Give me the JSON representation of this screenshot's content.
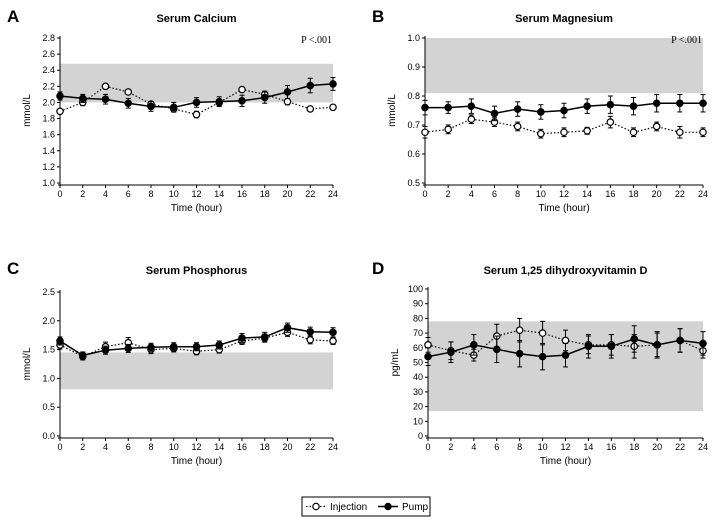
{
  "legend": {
    "injection": "Injection",
    "pump": "Pump"
  },
  "colors": {
    "band": "#d3d3d3",
    "pump": "#000000",
    "injection_fill": "#ffffff",
    "line": "#000000"
  },
  "chart_data": [
    {
      "panel": "A",
      "type": "line",
      "title": "Serum Calcium",
      "xlabel": "Time (hour)",
      "ylabel": "mmol/L",
      "annotation": "P <.001",
      "xlim": [
        0,
        24
      ],
      "ylim": [
        1.0,
        2.8
      ],
      "xticks": [
        0,
        2,
        4,
        6,
        8,
        10,
        12,
        14,
        16,
        18,
        20,
        22,
        24
      ],
      "yticks": [
        "1.0",
        "1.2",
        "1.4",
        "1.6",
        "1.8",
        "2.0",
        "2.2",
        "2.4",
        "2.6",
        "2.8"
      ],
      "reference_band": [
        2.0,
        2.48
      ],
      "x": [
        0,
        2,
        4,
        6,
        8,
        10,
        12,
        14,
        16,
        18,
        20,
        22,
        24
      ],
      "series": [
        {
          "name": "Injection",
          "style": "dotted-open",
          "values": [
            1.89,
            2.0,
            2.2,
            2.13,
            1.98,
            1.92,
            1.85,
            2.0,
            2.16,
            2.1,
            2.01,
            1.92,
            1.94
          ],
          "err": [
            0.03,
            0.04,
            0.03,
            0.03,
            0.03,
            0.03,
            0.04,
            0.04,
            0.03,
            0.04,
            0.04,
            0.03,
            0.03
          ]
        },
        {
          "name": "Pump",
          "style": "solid-filled",
          "values": [
            2.08,
            2.05,
            2.04,
            1.99,
            1.95,
            1.94,
            2.0,
            2.01,
            2.02,
            2.06,
            2.13,
            2.21,
            2.23
          ],
          "err": [
            0.05,
            0.05,
            0.06,
            0.06,
            0.06,
            0.06,
            0.06,
            0.06,
            0.07,
            0.07,
            0.08,
            0.09,
            0.08
          ]
        }
      ]
    },
    {
      "panel": "B",
      "type": "line",
      "title": "Serum Magnesium",
      "xlabel": "Time (hour)",
      "ylabel": "mmol/L",
      "annotation": "P <.001",
      "xlim": [
        0,
        24
      ],
      "ylim": [
        0.5,
        1.0
      ],
      "xticks": [
        0,
        2,
        4,
        6,
        8,
        10,
        12,
        14,
        16,
        18,
        20,
        22,
        24
      ],
      "yticks": [
        "0.5",
        "0.6",
        "0.7",
        "0.8",
        "0.9",
        "1.0"
      ],
      "reference_band": [
        0.81,
        1.0
      ],
      "x": [
        0,
        2,
        4,
        6,
        8,
        10,
        12,
        14,
        16,
        18,
        20,
        22,
        24
      ],
      "series": [
        {
          "name": "Injection",
          "style": "dotted-open",
          "values": [
            0.675,
            0.685,
            0.72,
            0.71,
            0.695,
            0.67,
            0.675,
            0.68,
            0.71,
            0.675,
            0.695,
            0.675,
            0.675
          ],
          "err": [
            0.02,
            0.015,
            0.015,
            0.015,
            0.015,
            0.015,
            0.015,
            0.012,
            0.02,
            0.015,
            0.015,
            0.02,
            0.015
          ]
        },
        {
          "name": "Pump",
          "style": "solid-filled",
          "values": [
            0.76,
            0.76,
            0.765,
            0.74,
            0.755,
            0.745,
            0.75,
            0.765,
            0.77,
            0.765,
            0.775,
            0.775,
            0.775
          ],
          "err": [
            0.025,
            0.02,
            0.025,
            0.025,
            0.025,
            0.025,
            0.025,
            0.025,
            0.03,
            0.03,
            0.03,
            0.03,
            0.03
          ]
        }
      ]
    },
    {
      "panel": "C",
      "type": "line",
      "title": "Serum Phosphorus",
      "xlabel": "Time (hour)",
      "ylabel": "mmol/L",
      "annotation": "",
      "xlim": [
        0,
        24
      ],
      "ylim": [
        0.0,
        2.5
      ],
      "xticks": [
        0,
        2,
        4,
        6,
        8,
        10,
        12,
        14,
        16,
        18,
        20,
        22,
        24
      ],
      "yticks": [
        "0.0",
        "0.5",
        "1.0",
        "1.5",
        "2.0",
        "2.5"
      ],
      "reference_band": [
        0.81,
        1.45
      ],
      "x": [
        0,
        2,
        4,
        6,
        8,
        10,
        12,
        14,
        16,
        18,
        20,
        22,
        24
      ],
      "series": [
        {
          "name": "Injection",
          "style": "dotted-open",
          "values": [
            1.58,
            1.38,
            1.55,
            1.62,
            1.5,
            1.52,
            1.47,
            1.5,
            1.65,
            1.7,
            1.8,
            1.67,
            1.65
          ],
          "err": [
            0.07,
            0.06,
            0.08,
            0.09,
            0.07,
            0.06,
            0.06,
            0.06,
            0.06,
            0.07,
            0.07,
            0.07,
            0.06
          ]
        },
        {
          "name": "Pump",
          "style": "solid-filled",
          "values": [
            1.65,
            1.4,
            1.49,
            1.52,
            1.54,
            1.55,
            1.55,
            1.58,
            1.7,
            1.72,
            1.88,
            1.81,
            1.8
          ],
          "err": [
            0.07,
            0.06,
            0.07,
            0.07,
            0.07,
            0.07,
            0.07,
            0.07,
            0.08,
            0.08,
            0.08,
            0.08,
            0.08
          ]
        }
      ]
    },
    {
      "panel": "D",
      "type": "line",
      "title": "Serum 1,25 dihydroxyvitamin D",
      "xlabel": "Time (hour)",
      "ylabel": "pg/mL",
      "annotation": "",
      "xlim": [
        0,
        24
      ],
      "ylim": [
        0,
        100
      ],
      "xticks": [
        0,
        2,
        4,
        6,
        8,
        10,
        12,
        14,
        16,
        18,
        20,
        22,
        24
      ],
      "yticks": [
        "0",
        "10",
        "20",
        "30",
        "40",
        "50",
        "60",
        "70",
        "80",
        "90",
        "100"
      ],
      "reference_band": [
        17,
        78
      ],
      "x": [
        0,
        2,
        4,
        6,
        8,
        10,
        12,
        14,
        16,
        18,
        20,
        22,
        24
      ],
      "series": [
        {
          "name": "Injection",
          "style": "dotted-open",
          "values": [
            62,
            58,
            55,
            68,
            72,
            70,
            65,
            62,
            62,
            61,
            62,
            65,
            58
          ],
          "err": [
            5,
            6,
            4,
            8,
            8,
            8,
            7,
            6,
            7,
            8,
            8,
            8,
            5
          ]
        },
        {
          "name": "Pump",
          "style": "solid-filled",
          "values": [
            54,
            57,
            62,
            59,
            56,
            54,
            55,
            61,
            61,
            66,
            62,
            65,
            63
          ],
          "err": [
            6,
            7,
            7,
            9,
            9,
            9,
            8,
            8,
            8,
            9,
            9,
            8,
            8
          ]
        }
      ]
    }
  ]
}
